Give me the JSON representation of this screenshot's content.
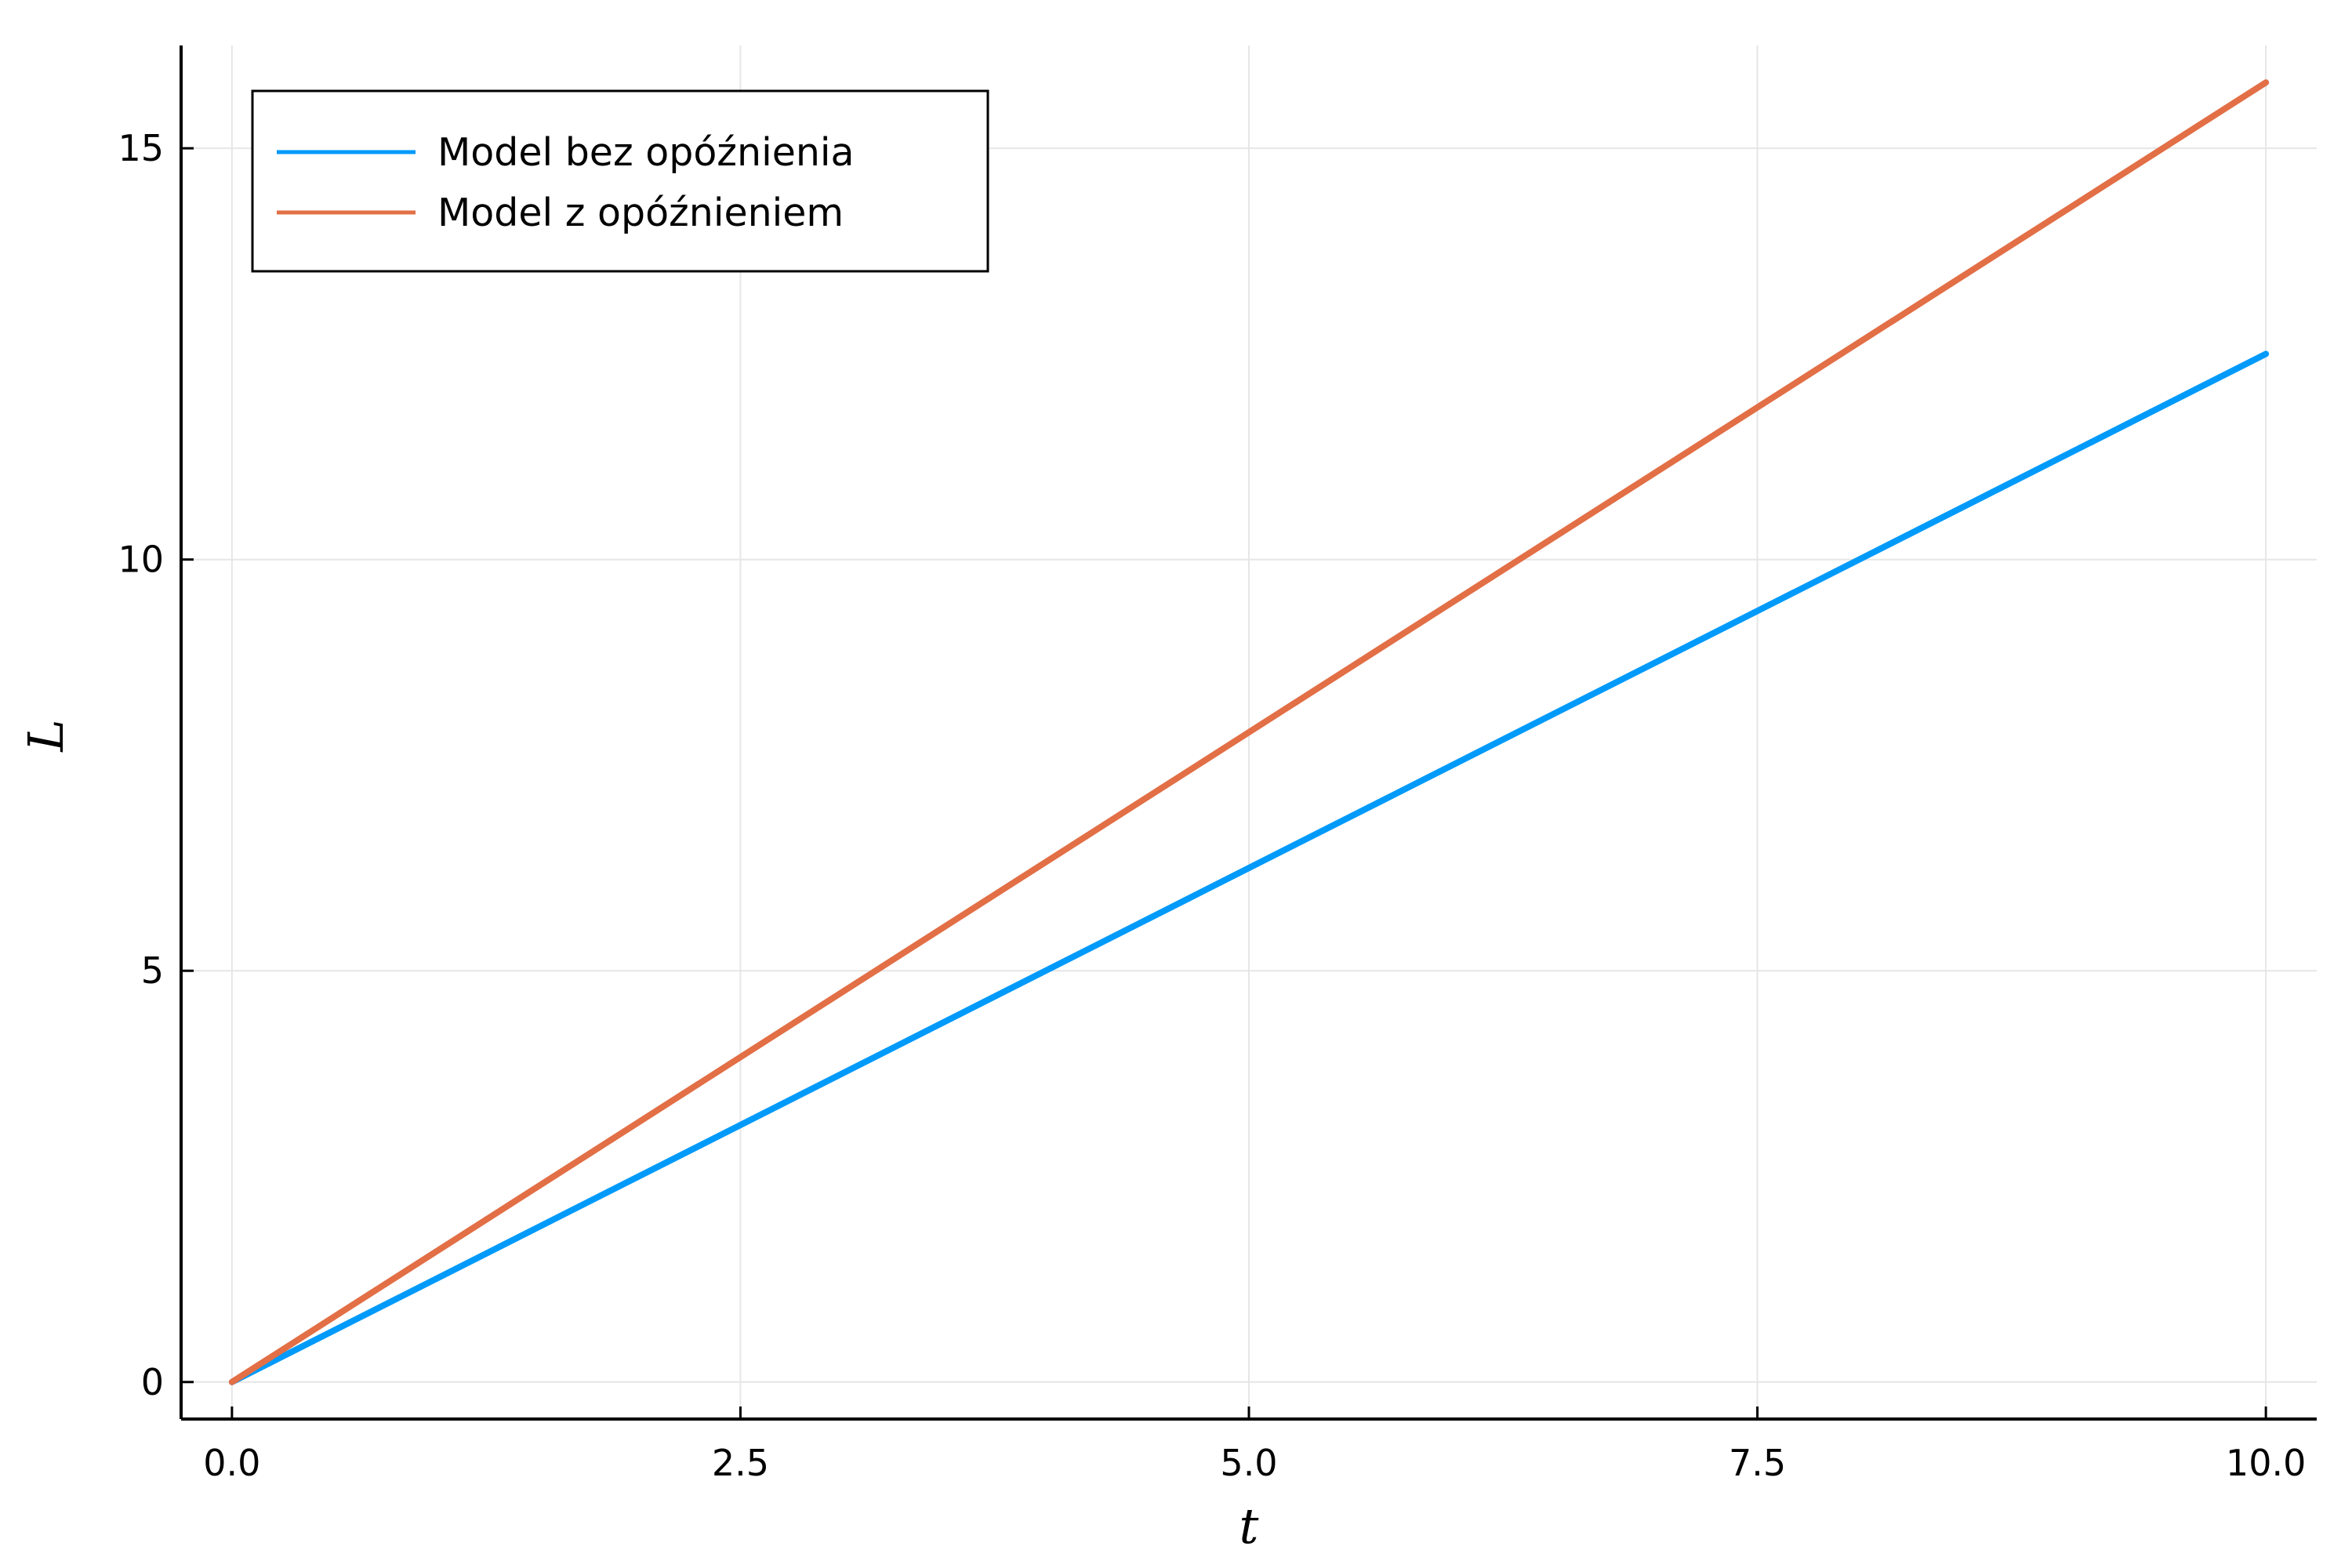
{
  "chart_data": {
    "type": "line",
    "xlabel": "t",
    "ylabel": "L",
    "xlim": [
      -0.25,
      10.25
    ],
    "ylim": [
      -0.45,
      16.25
    ],
    "xticks": [
      0.0,
      2.5,
      5.0,
      7.5,
      10.0
    ],
    "xtick_labels": [
      "0.0",
      "2.5",
      "5.0",
      "7.5",
      "10.0"
    ],
    "yticks": [
      0,
      5,
      10,
      15
    ],
    "ytick_labels": [
      "0",
      "5",
      "10",
      "15"
    ],
    "grid": true,
    "legend_position": "top-left",
    "series": [
      {
        "name": "Model bez opóźnienia",
        "color": "#009AFA",
        "x": [
          0.0,
          10.0
        ],
        "y": [
          0.0,
          12.5
        ]
      },
      {
        "name": "Model z opóźnieniem",
        "color": "#E26F46",
        "x": [
          0.0,
          10.0
        ],
        "y": [
          0.0,
          15.8
        ]
      }
    ]
  }
}
